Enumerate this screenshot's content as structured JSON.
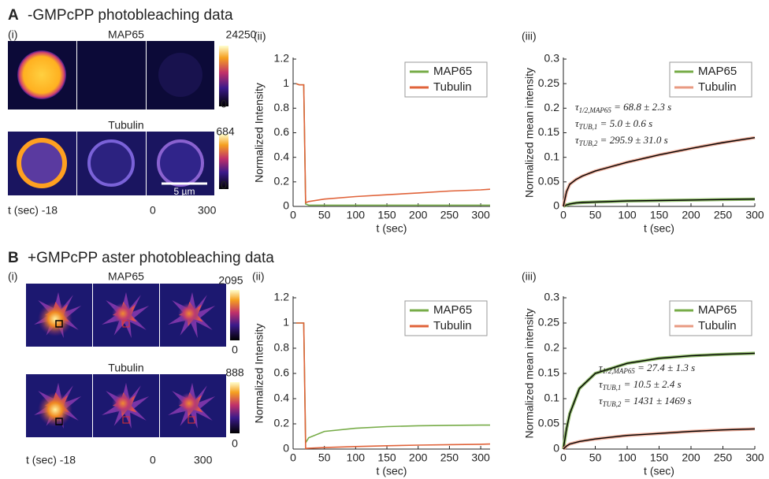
{
  "figure": {
    "panels": [
      {
        "letter": "A",
        "title": "-GMPcPP photobleaching data",
        "image_label": "(i)",
        "rows": [
          {
            "label": "MAP65",
            "colorbar_max": 24250,
            "colorbar_min": 0
          },
          {
            "label": "Tubulin",
            "colorbar_max": 684,
            "colorbar_min": 0
          }
        ],
        "scale_bar": "5 µm",
        "time_labels": [
          "t (sec) -18",
          "0",
          "300"
        ]
      },
      {
        "letter": "B",
        "title": "+GMPcPP aster photobleaching data",
        "image_label": "(i)",
        "rows": [
          {
            "label": "MAP65",
            "colorbar_max": 2095,
            "colorbar_min": 0
          },
          {
            "label": "Tubulin",
            "colorbar_max": 888,
            "colorbar_min": 0
          }
        ],
        "time_labels": [
          "t (sec) -18",
          "0",
          "300"
        ]
      }
    ]
  },
  "chart_data": [
    {
      "type": "line",
      "panel_label": "(ii)",
      "xlabel": "t (sec)",
      "ylabel": "Normalized Intensity",
      "xlim": [
        0,
        315
      ],
      "ylim": [
        0,
        1.2
      ],
      "xticks": [
        0,
        50,
        100,
        150,
        200,
        250,
        300
      ],
      "yticks": [
        0,
        0.2,
        0.4,
        0.6,
        0.8,
        1,
        1.2
      ],
      "legend": "upper right",
      "x": [
        5,
        10,
        17,
        20,
        25,
        50,
        100,
        150,
        200,
        250,
        300,
        315
      ],
      "series": [
        {
          "name": "MAP65",
          "color": "#77ac48",
          "values": [
            1,
            0.99,
            0.99,
            0.02,
            0.01,
            0.01,
            0.01,
            0.01,
            0.01,
            0.01,
            0.01,
            0.01
          ]
        },
        {
          "name": "Tubulin",
          "color": "#e0633a",
          "values": [
            1,
            0.99,
            0.99,
            0.03,
            0.04,
            0.06,
            0.08,
            0.095,
            0.11,
            0.125,
            0.135,
            0.14
          ]
        }
      ]
    },
    {
      "type": "line",
      "panel_label": "(iii)",
      "xlabel": "t (sec)",
      "ylabel": "Normalized mean intensity",
      "xlim": [
        0,
        300
      ],
      "ylim": [
        0,
        0.3
      ],
      "xticks": [
        0,
        50,
        100,
        150,
        200,
        250,
        300
      ],
      "yticks": [
        0,
        0.05,
        0.1,
        0.15,
        0.2,
        0.25,
        0.3
      ],
      "legend": "upper right",
      "fit_color": "#000000",
      "x": [
        0,
        5,
        10,
        20,
        30,
        50,
        100,
        150,
        200,
        250,
        300
      ],
      "series": [
        {
          "name": "MAP65",
          "color": "#77ac48",
          "values": [
            0,
            0.003,
            0.005,
            0.007,
            0.008,
            0.009,
            0.011,
            0.012,
            0.013,
            0.014,
            0.015
          ]
        },
        {
          "name": "Tubulin",
          "color": "#e89a82",
          "values": [
            0,
            0.03,
            0.045,
            0.055,
            0.062,
            0.072,
            0.09,
            0.105,
            0.118,
            0.13,
            0.14
          ]
        }
      ],
      "annotations": [
        {
          "symbol": "τ",
          "subscript": "1/2,MAP65",
          "text": " = 68.8 ± 2.3 s"
        },
        {
          "symbol": "τ",
          "subscript": "TUB,1",
          "text": " = 5.0 ± 0.6 s"
        },
        {
          "symbol": "τ",
          "subscript": "TUB,2",
          "text": " = 295.9 ± 31.0 s"
        }
      ]
    },
    {
      "type": "line",
      "panel_label": "(ii)",
      "xlabel": "t (sec)",
      "ylabel": "Normalized Intensity",
      "xlim": [
        0,
        315
      ],
      "ylim": [
        0,
        1.2
      ],
      "xticks": [
        0,
        50,
        100,
        150,
        200,
        250,
        300
      ],
      "yticks": [
        0,
        0.2,
        0.4,
        0.6,
        0.8,
        1,
        1.2
      ],
      "legend": "upper right",
      "x": [
        5,
        10,
        17,
        20,
        25,
        50,
        100,
        150,
        200,
        250,
        300,
        315
      ],
      "series": [
        {
          "name": "MAP65",
          "color": "#77ac48",
          "values": [
            1,
            1,
            1,
            0.05,
            0.09,
            0.14,
            0.165,
            0.178,
            0.185,
            0.188,
            0.19,
            0.19
          ]
        },
        {
          "name": "Tubulin",
          "color": "#e0633a",
          "values": [
            1,
            1,
            1,
            0.005,
            0.007,
            0.012,
            0.02,
            0.026,
            0.031,
            0.035,
            0.038,
            0.04
          ]
        }
      ]
    },
    {
      "type": "line",
      "panel_label": "(iii)",
      "xlabel": "t (sec)",
      "ylabel": "Normalized mean intensity",
      "xlim": [
        0,
        300
      ],
      "ylim": [
        0,
        0.3
      ],
      "xticks": [
        0,
        50,
        100,
        150,
        200,
        250,
        300
      ],
      "yticks": [
        0,
        0.05,
        0.1,
        0.15,
        0.2,
        0.25,
        0.3
      ],
      "legend": "upper right",
      "fit_color": "#000000",
      "x": [
        0,
        5,
        10,
        25,
        50,
        100,
        150,
        200,
        250,
        300
      ],
      "series": [
        {
          "name": "MAP65",
          "color": "#77ac48",
          "values": [
            0,
            0.04,
            0.07,
            0.12,
            0.15,
            0.17,
            0.18,
            0.185,
            0.188,
            0.19
          ]
        },
        {
          "name": "Tubulin",
          "color": "#e89a82",
          "values": [
            0,
            0.006,
            0.01,
            0.015,
            0.02,
            0.027,
            0.031,
            0.035,
            0.038,
            0.04
          ]
        }
      ],
      "annotations": [
        {
          "symbol": "τ",
          "subscript": "1/2,MAP65",
          "text": " = 27.4 ± 1.3 s"
        },
        {
          "symbol": "τ",
          "subscript": "TUB,1",
          "text": " = 10.5 ± 2.4 s"
        },
        {
          "symbol": "τ",
          "subscript": "TUB,2",
          "text": " = 1431 ± 1469 s"
        }
      ]
    }
  ]
}
